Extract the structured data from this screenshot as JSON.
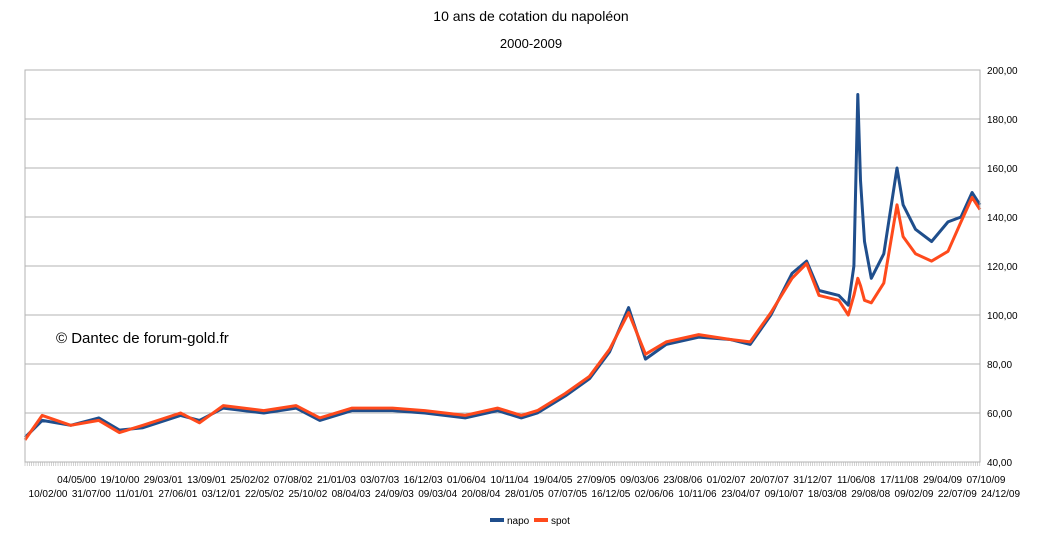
{
  "chart_data": {
    "type": "line",
    "title": "10 ans de cotation du napoléon",
    "subtitle": "2000-2009",
    "annotation": "© Dantec de forum-gold.fr",
    "ylim": [
      40,
      200
    ],
    "y_ticks": [
      "40,00",
      "60,00",
      "80,00",
      "100,00",
      "120,00",
      "140,00",
      "160,00",
      "180,00",
      "200,00"
    ],
    "y_tick_values": [
      40,
      60,
      80,
      100,
      120,
      140,
      160,
      180,
      200
    ],
    "grid": true,
    "y_axis_side": "right",
    "legend_position": "bottom",
    "x_date_range": [
      "2000-02-10",
      "2009-12-31"
    ],
    "x_ticks_row1": [
      "04/05/00",
      "19/10/00",
      "29/03/01",
      "13/09/01",
      "25/02/02",
      "07/08/02",
      "21/01/03",
      "03/07/03",
      "16/12/03",
      "01/06/04",
      "10/11/04",
      "19/04/05",
      "27/09/05",
      "09/03/06",
      "23/08/06",
      "01/02/07",
      "20/07/07",
      "31/12/07",
      "11/06/08",
      "17/11/08",
      "29/04/09",
      "07/10/09"
    ],
    "x_ticks_row2": [
      "10/02/00",
      "31/07/00",
      "11/01/01",
      "27/06/01",
      "03/12/01",
      "22/05/02",
      "25/10/02",
      "08/04/03",
      "24/09/03",
      "09/03/04",
      "20/08/04",
      "28/01/05",
      "07/07/05",
      "16/12/05",
      "02/06/06",
      "10/11/06",
      "23/04/07",
      "09/10/07",
      "18/03/08",
      "29/08/08",
      "09/02/09",
      "22/07/09",
      "24/12/09"
    ],
    "series": [
      {
        "name": "napo",
        "color": "#1f4e8c",
        "points": [
          [
            "2000-02-10",
            50
          ],
          [
            "2000-04-15",
            57
          ],
          [
            "2000-08-01",
            55
          ],
          [
            "2000-11-15",
            58
          ],
          [
            "2001-02-01",
            53
          ],
          [
            "2001-05-01",
            54
          ],
          [
            "2001-09-20",
            59
          ],
          [
            "2001-12-01",
            57
          ],
          [
            "2002-03-01",
            62
          ],
          [
            "2002-08-01",
            60
          ],
          [
            "2002-12-01",
            62
          ],
          [
            "2003-03-01",
            57
          ],
          [
            "2003-07-01",
            61
          ],
          [
            "2003-12-01",
            61
          ],
          [
            "2004-04-01",
            60
          ],
          [
            "2004-09-01",
            58
          ],
          [
            "2005-01-01",
            61
          ],
          [
            "2005-04-01",
            58
          ],
          [
            "2005-06-01",
            60
          ],
          [
            "2005-09-15",
            67
          ],
          [
            "2005-12-15",
            74
          ],
          [
            "2006-03-01",
            85
          ],
          [
            "2006-05-12",
            103
          ],
          [
            "2006-07-15",
            82
          ],
          [
            "2006-10-01",
            88
          ],
          [
            "2007-02-01",
            91
          ],
          [
            "2007-06-01",
            90
          ],
          [
            "2007-08-15",
            88
          ],
          [
            "2007-11-01",
            100
          ],
          [
            "2008-01-20",
            117
          ],
          [
            "2008-03-15",
            122
          ],
          [
            "2008-05-01",
            110
          ],
          [
            "2008-07-15",
            108
          ],
          [
            "2008-08-20",
            104
          ],
          [
            "2008-09-10",
            120
          ],
          [
            "2008-09-25",
            190
          ],
          [
            "2008-10-05",
            155
          ],
          [
            "2008-10-20",
            130
          ],
          [
            "2008-11-15",
            115
          ],
          [
            "2009-01-01",
            125
          ],
          [
            "2009-02-20",
            160
          ],
          [
            "2009-03-15",
            145
          ],
          [
            "2009-05-01",
            135
          ],
          [
            "2009-07-01",
            130
          ],
          [
            "2009-09-01",
            138
          ],
          [
            "2009-10-20",
            140
          ],
          [
            "2009-12-01",
            150
          ],
          [
            "2009-12-31",
            145
          ]
        ]
      },
      {
        "name": "spot",
        "color": "#ff4a1c",
        "points": [
          [
            "2000-02-10",
            49
          ],
          [
            "2000-04-15",
            59
          ],
          [
            "2000-08-01",
            55
          ],
          [
            "2000-11-15",
            57
          ],
          [
            "2001-02-01",
            52
          ],
          [
            "2001-05-01",
            55
          ],
          [
            "2001-09-20",
            60
          ],
          [
            "2001-12-01",
            56
          ],
          [
            "2002-03-01",
            63
          ],
          [
            "2002-08-01",
            61
          ],
          [
            "2002-12-01",
            63
          ],
          [
            "2003-03-01",
            58
          ],
          [
            "2003-07-01",
            62
          ],
          [
            "2003-12-01",
            62
          ],
          [
            "2004-04-01",
            61
          ],
          [
            "2004-09-01",
            59
          ],
          [
            "2005-01-01",
            62
          ],
          [
            "2005-04-01",
            59
          ],
          [
            "2005-06-01",
            61
          ],
          [
            "2005-09-15",
            68
          ],
          [
            "2005-12-15",
            75
          ],
          [
            "2006-03-01",
            86
          ],
          [
            "2006-05-12",
            101
          ],
          [
            "2006-07-15",
            84
          ],
          [
            "2006-10-01",
            89
          ],
          [
            "2007-02-01",
            92
          ],
          [
            "2007-06-01",
            90
          ],
          [
            "2007-08-15",
            89
          ],
          [
            "2007-11-01",
            101
          ],
          [
            "2008-01-20",
            115
          ],
          [
            "2008-03-15",
            121
          ],
          [
            "2008-05-01",
            108
          ],
          [
            "2008-07-15",
            106
          ],
          [
            "2008-08-20",
            100
          ],
          [
            "2008-09-10",
            108
          ],
          [
            "2008-09-25",
            115
          ],
          [
            "2008-10-05",
            112
          ],
          [
            "2008-10-20",
            106
          ],
          [
            "2008-11-15",
            105
          ],
          [
            "2009-01-01",
            113
          ],
          [
            "2009-02-20",
            145
          ],
          [
            "2009-03-15",
            132
          ],
          [
            "2009-05-01",
            125
          ],
          [
            "2009-07-01",
            122
          ],
          [
            "2009-09-01",
            126
          ],
          [
            "2009-10-20",
            138
          ],
          [
            "2009-12-01",
            148
          ],
          [
            "2009-12-31",
            143
          ]
        ]
      }
    ]
  }
}
